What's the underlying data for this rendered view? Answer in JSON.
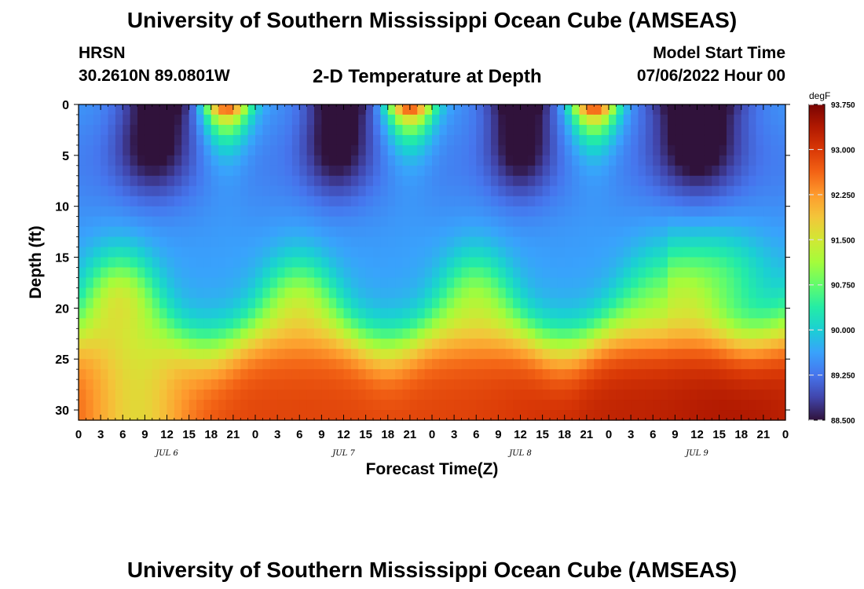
{
  "header": {
    "title": "University of Southern Mississippi Ocean Cube (AMSEAS)",
    "station": "HRSN",
    "coordinates": "30.2610N  89.0801W",
    "subtitle": "2-D Temperature at Depth",
    "model_start_label": "Model Start Time",
    "model_start_value": "07/06/2022 Hour 00"
  },
  "footer": {
    "title": "University of Southern Mississippi Ocean Cube (AMSEAS)"
  },
  "chart_data": {
    "type": "heatmap",
    "title": "2-D Temperature at Depth",
    "xlabel": "Forecast Time(Z)",
    "ylabel": "Depth (ft)",
    "x_ticks": [
      "0",
      "3",
      "6",
      "9",
      "12",
      "15",
      "18",
      "21",
      "0",
      "3",
      "6",
      "9",
      "12",
      "15",
      "18",
      "21",
      "0",
      "3",
      "6",
      "9",
      "12",
      "15",
      "18",
      "21",
      "0",
      "3",
      "6",
      "9",
      "12",
      "15",
      "18",
      "21",
      "0"
    ],
    "x_date_labels": [
      {
        "label": "JUL 6",
        "hour": 12
      },
      {
        "label": "JUL 7",
        "hour": 36
      },
      {
        "label": "JUL 8",
        "hour": 60
      },
      {
        "label": "JUL 9",
        "hour": 84
      }
    ],
    "xlim": [
      0,
      96
    ],
    "y_ticks": [
      0,
      5,
      10,
      15,
      20,
      25,
      30
    ],
    "ylim": [
      0,
      31
    ],
    "y_inverted": true,
    "colorbar": {
      "unit": "degF",
      "min": 88.5,
      "max": 93.75,
      "ticks": [
        "88.500",
        "89.250",
        "90.000",
        "90.750",
        "91.500",
        "92.250",
        "93.000",
        "93.750"
      ],
      "colors": [
        "#30123b",
        "#4145ab",
        "#4675ed",
        "#39a2fc",
        "#1bcfd4",
        "#24eca6",
        "#61fc6c",
        "#a4fc3b",
        "#d1e834",
        "#f3c63a",
        "#fe9b2d",
        "#f36315",
        "#d93806",
        "#b11901",
        "#7a0402"
      ]
    },
    "surface_warm_peaks_hours": [
      20,
      45,
      70
    ],
    "bottom_warm_layer_depth_ft": 23,
    "temperature_range_degF": [
      88.5,
      93.75
    ]
  }
}
